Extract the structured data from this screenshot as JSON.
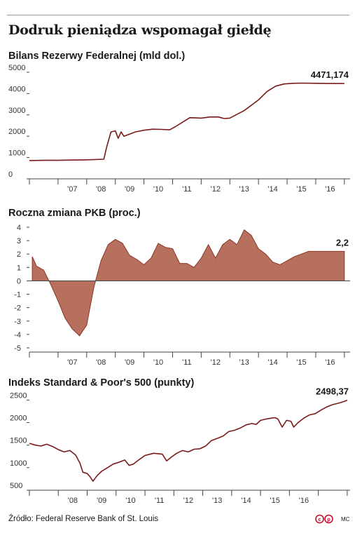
{
  "title": "Dodruk pieniądza wspomagał giełdę",
  "source": "Źródło: Federal Reserve Bank of St. Louis",
  "author": "MC",
  "colors": {
    "line": "#7a1a1a",
    "area_fill": "#b8705e",
    "area_stroke": "#8a3626",
    "axis": "#444444",
    "grid": "#e2e2e2"
  },
  "chart_data": [
    {
      "type": "line",
      "title": "Bilans Rezerwy Federalnej (mld dol.)",
      "ylim": [
        0,
        5000
      ],
      "y_ticks": [
        0,
        1000,
        2000,
        3000,
        4000,
        5000
      ],
      "y_tick_labels": [
        "0",
        "1000",
        "2000",
        "3000",
        "4000",
        "5000"
      ],
      "xlim": [
        2006,
        2017.2
      ],
      "x_ticks": [
        "'07",
        "'08",
        "'09",
        "'10",
        "'11",
        "'12",
        "'13",
        "'14",
        "'15",
        "'16"
      ],
      "end_label": "4471,174",
      "series": [
        {
          "x": [
            2006,
            2006.5,
            2007,
            2007.5,
            2008,
            2008.6,
            2008.7,
            2008.85,
            2009.0,
            2009.1,
            2009.2,
            2009.3,
            2009.5,
            2009.7,
            2010,
            2010.3,
            2010.6,
            2010.9,
            2011.1,
            2011.4,
            2011.6,
            2011.8,
            2012,
            2012.3,
            2012.6,
            2012.8,
            2013,
            2013.5,
            2014,
            2014.3,
            2014.6,
            2014.9,
            2015.2,
            2015.5,
            2016,
            2016.5,
            2017.0
          ],
          "y": [
            860,
            870,
            870,
            880,
            890,
            920,
            1500,
            2200,
            2250,
            1900,
            2200,
            2000,
            2100,
            2200,
            2280,
            2330,
            2320,
            2300,
            2450,
            2700,
            2870,
            2860,
            2850,
            2900,
            2900,
            2830,
            2850,
            3200,
            3700,
            4100,
            4350,
            4450,
            4480,
            4490,
            4480,
            4470,
            4471
          ]
        }
      ]
    },
    {
      "type": "area",
      "title": "Roczna zmiana PKB (proc.)",
      "ylim": [
        -5,
        4
      ],
      "y_ticks": [
        -5,
        -4,
        -3,
        -2,
        -1,
        0,
        1,
        2,
        3,
        4
      ],
      "y_tick_labels": [
        "-5",
        "-4",
        "-3",
        "-2",
        "-1",
        "0",
        "1",
        "2",
        "3",
        "4"
      ],
      "xlim": [
        2006,
        2017.2
      ],
      "x_ticks": [
        "'07",
        "'08",
        "'09",
        "'10",
        "'11",
        "'12",
        "'13",
        "'14",
        "'15",
        "'16"
      ],
      "end_label": "2,2",
      "series": [
        {
          "x": [
            2006.1,
            2006.25,
            2006.5,
            2006.75,
            2007.0,
            2007.25,
            2007.5,
            2007.75,
            2008.0,
            2008.25,
            2008.5,
            2008.75,
            2009.0,
            2009.25,
            2009.5,
            2009.75,
            2010.0,
            2010.25,
            2010.5,
            2010.75,
            2011.0,
            2011.25,
            2011.5,
            2011.75,
            2012.0,
            2012.25,
            2012.5,
            2012.75,
            2013.0,
            2013.25,
            2013.5,
            2013.75,
            2014.0,
            2014.25,
            2014.5,
            2014.75,
            2015.0,
            2015.25,
            2015.5,
            2015.75,
            2016.0,
            2016.25,
            2016.5,
            2016.75,
            2017.0
          ],
          "y": [
            1.8,
            1.1,
            0.8,
            -0.3,
            -1.5,
            -2.8,
            -3.6,
            -4.1,
            -3.3,
            -0.5,
            1.5,
            2.7,
            3.1,
            2.8,
            1.9,
            1.6,
            1.2,
            1.7,
            2.8,
            2.5,
            2.4,
            1.3,
            1.3,
            1.0,
            1.7,
            2.7,
            1.7,
            2.7,
            3.1,
            2.7,
            3.8,
            3.4,
            2.4,
            2.0,
            1.4,
            1.2,
            1.5,
            1.8,
            2.0,
            2.2,
            2.2,
            2.2,
            2.2,
            2.2,
            2.2
          ]
        }
      ]
    },
    {
      "type": "line",
      "title": "Indeks Standard & Poor's 500 (punkty)",
      "ylim": [
        500,
        2600
      ],
      "y_ticks": [
        500,
        1000,
        1500,
        2000,
        2500
      ],
      "y_tick_labels": [
        "500",
        "1000",
        "1500",
        "2000",
        "2500"
      ],
      "xlim": [
        2007,
        2018.1
      ],
      "x_ticks": [
        "'08",
        "'09",
        "'10",
        "'11",
        "'12",
        "'13",
        "'14",
        "'15",
        "'16"
      ],
      "end_label": "2498,37",
      "series": [
        {
          "x": [
            2007.0,
            2007.2,
            2007.4,
            2007.6,
            2007.8,
            2008.0,
            2008.2,
            2008.4,
            2008.6,
            2008.75,
            2008.85,
            2009.0,
            2009.1,
            2009.2,
            2009.35,
            2009.5,
            2009.7,
            2009.9,
            2010.1,
            2010.3,
            2010.45,
            2010.6,
            2010.8,
            2011.0,
            2011.3,
            2011.6,
            2011.75,
            2011.9,
            2012.1,
            2012.3,
            2012.5,
            2012.7,
            2012.9,
            2013.1,
            2013.3,
            2013.5,
            2013.7,
            2013.9,
            2014.1,
            2014.3,
            2014.5,
            2014.7,
            2014.85,
            2015.0,
            2015.2,
            2015.4,
            2015.5,
            2015.6,
            2015.75,
            2015.9,
            2016.05,
            2016.15,
            2016.3,
            2016.5,
            2016.7,
            2016.9,
            2017.1,
            2017.3,
            2017.5,
            2017.7,
            2017.9,
            2018.0
          ],
          "y": [
            1540,
            1500,
            1480,
            1520,
            1470,
            1400,
            1350,
            1380,
            1280,
            1100,
            900,
            870,
            800,
            700,
            830,
            920,
            1000,
            1080,
            1120,
            1170,
            1050,
            1080,
            1180,
            1270,
            1320,
            1300,
            1150,
            1230,
            1320,
            1380,
            1350,
            1410,
            1420,
            1480,
            1600,
            1650,
            1700,
            1800,
            1830,
            1880,
            1950,
            1980,
            1960,
            2050,
            2080,
            2100,
            2110,
            2080,
            1900,
            2050,
            2030,
            1900,
            2000,
            2100,
            2170,
            2200,
            2280,
            2350,
            2400,
            2430,
            2470,
            2498
          ]
        }
      ]
    }
  ]
}
